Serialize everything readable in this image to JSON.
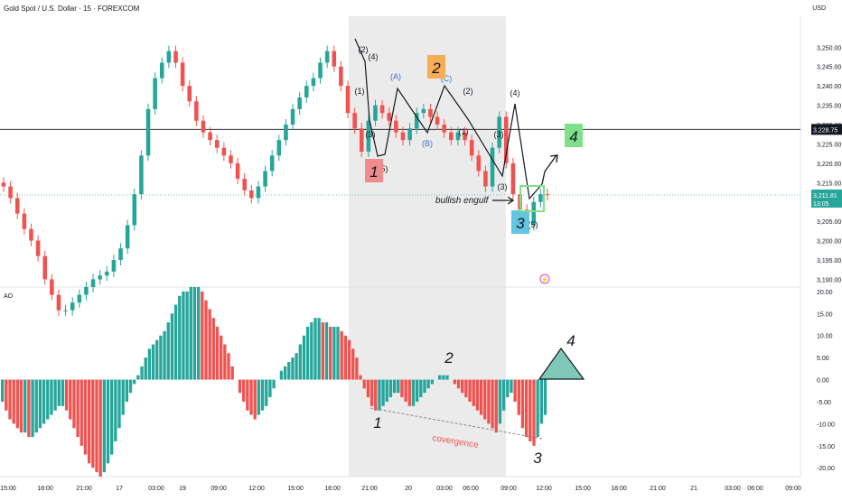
{
  "header": {
    "title": "Gold Spot / U.S. Dollar · 15 · FOREXCOM",
    "currency": "USD"
  },
  "colors": {
    "up": "#26a69a",
    "down": "#ef5350",
    "label2": "#f6ad55",
    "label1": "#f28b8b",
    "label3": "#63c5e0",
    "label4": "#7fe08a",
    "triangle": "#7fc8b8"
  },
  "chart_data": [
    {
      "type": "candlestick",
      "title": "Gold Spot / U.S. Dollar · 15 · FOREXCOM",
      "yaxis": {
        "ticks": [
          "3,250.00",
          "3,245.00",
          "3,240.00",
          "3,235.00",
          "3,230.00",
          "3,225.00",
          "3,220.00",
          "3,215.00",
          "3,210.00",
          "3,205.00",
          "3,200.00",
          "3,195.00",
          "3,190.00"
        ],
        "range": [
          3188,
          3258
        ]
      },
      "xaxis": {
        "ticks": [
          "15:00",
          "18:00",
          "21:00",
          "17",
          "03:00",
          "19",
          "09:00",
          "12:00",
          "15:00",
          "18:00",
          "21:00",
          "20",
          "03:00",
          "06:00",
          "09:00",
          "12:00",
          "15:00",
          "18:00",
          "21:00",
          "21",
          "03:00",
          "06:00",
          "09:00"
        ]
      },
      "horizontal_line": {
        "value": 3228.75,
        "label": "3,228.75"
      },
      "last_price": {
        "value": 3211.81,
        "label": "3,211.81",
        "countdown": "13:05"
      },
      "shaded_session": "20",
      "price_path": [
        3214,
        3211,
        3207,
        3203,
        3200,
        3196,
        3190,
        3186,
        3182,
        3182,
        3184,
        3186,
        3188,
        3190,
        3191,
        3192,
        3195,
        3198,
        3204,
        3212,
        3222,
        3234,
        3242,
        3246,
        3249,
        3246,
        3240,
        3236,
        3231,
        3228,
        3226,
        3224,
        3222,
        3220,
        3216,
        3213,
        3211,
        3214,
        3218,
        3222,
        3226,
        3230,
        3234,
        3237,
        3240,
        3242,
        3246,
        3249,
        3245,
        3240,
        3233,
        3229,
        3223,
        3231,
        3235,
        3233,
        3231,
        3228,
        3226,
        3229,
        3233,
        3234,
        3232,
        3230,
        3228,
        3226,
        3228,
        3226,
        3222,
        3218,
        3214,
        3224,
        3232,
        3220,
        3212,
        3208,
        3204,
        3210,
        3212,
        3211.81
      ],
      "wave_labels": [
        "(2)",
        "(4)",
        "(1)",
        "(3)",
        "(5)",
        "(A)",
        "(B)",
        "(C)",
        "(2)",
        "(1)",
        "(3)",
        "(4)",
        "(3)",
        "(5)",
        "1",
        "2",
        "3",
        "4"
      ],
      "annotations": [
        "bullish engulf"
      ]
    },
    {
      "type": "bar",
      "title": "AO",
      "yaxis": {
        "ticks": [
          "20.00",
          "15.00",
          "10.00",
          "5.00",
          "0.00",
          "-5.00",
          "-10.00",
          "-15.00",
          "-20.00"
        ],
        "range": [
          -22,
          21
        ]
      },
      "values": [
        -5,
        -7,
        -9,
        -10,
        -11,
        -12,
        -12,
        -13,
        -13,
        -12,
        -11,
        -10,
        -9,
        -8,
        -7,
        -6,
        -6,
        -7,
        -9,
        -11,
        -13,
        -15,
        -17,
        -19,
        -20,
        -21,
        -22,
        -21,
        -19,
        -17,
        -14,
        -11,
        -8,
        -5,
        -3,
        -1,
        1,
        3,
        5,
        7,
        8,
        9,
        10,
        11,
        13,
        15,
        17,
        19,
        20,
        20,
        21,
        21,
        21,
        20,
        18,
        16,
        14,
        12,
        10,
        8,
        6,
        3,
        0,
        -3,
        -5,
        -7,
        -8,
        -9,
        -8,
        -7,
        -6,
        -4,
        -2,
        0,
        2,
        3,
        4,
        5,
        6,
        8,
        10,
        12,
        13,
        14,
        14,
        13,
        13,
        12,
        12,
        12,
        11,
        10,
        9,
        7,
        5,
        1,
        -2,
        -4,
        -6,
        -7,
        -7,
        -6,
        -5,
        -4,
        -3,
        -3,
        -4,
        -5,
        -6,
        -6,
        -5,
        -4,
        -3,
        -2,
        -1,
        0,
        1,
        1,
        1,
        0,
        -1,
        -2,
        -3,
        -4,
        -5,
        -6,
        -7,
        -8,
        -9,
        -10,
        -11,
        -12,
        -10,
        -7,
        -4,
        -3,
        -5,
        -8,
        -11,
        -13,
        -14,
        -15,
        -13,
        -10,
        -8
      ],
      "wave_labels": [
        "1",
        "2",
        "3",
        "4"
      ],
      "annotations": [
        "covergence"
      ]
    }
  ],
  "labels": {
    "engulf": "bullish engulf",
    "convergence": "covergence",
    "ao": "AO"
  }
}
